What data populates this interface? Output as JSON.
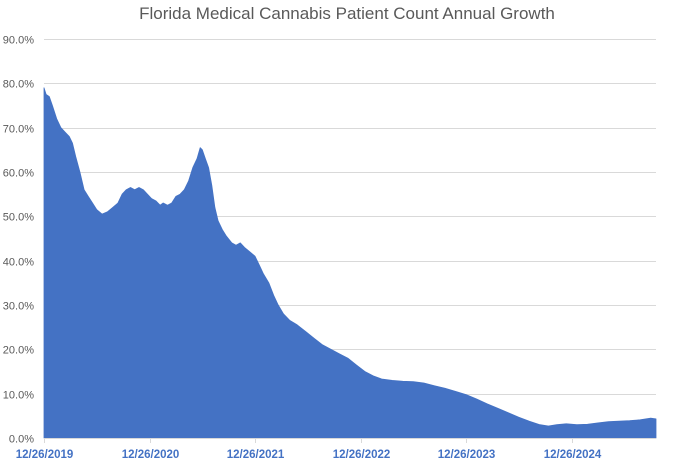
{
  "chart_data": {
    "type": "area",
    "title": "Florida Medical Cannabis Patient Count Annual Growth",
    "xlabel": "",
    "ylabel": "",
    "ylim": [
      0,
      0.9
    ],
    "y_ticks": [
      0,
      0.1,
      0.2,
      0.3,
      0.4,
      0.5,
      0.6,
      0.7,
      0.8,
      0.9
    ],
    "y_tick_labels": [
      "0.0%",
      "10.0%",
      "20.0%",
      "30.0%",
      "40.0%",
      "50.0%",
      "60.0%",
      "70.0%",
      "80.0%",
      "90.0%"
    ],
    "x_tick_labels": [
      "12/26/2019",
      "12/26/2020",
      "12/26/2021",
      "12/26/2022",
      "12/26/2023",
      "12/26/2024"
    ],
    "x_range_years": [
      0,
      5.8
    ],
    "grid": true,
    "legend": "none",
    "fill_color": "#4472c4",
    "series": [
      {
        "name": "Annual Growth",
        "points": [
          [
            0.0,
            0.79
          ],
          [
            0.02,
            0.775
          ],
          [
            0.05,
            0.77
          ],
          [
            0.08,
            0.75
          ],
          [
            0.12,
            0.72
          ],
          [
            0.16,
            0.7
          ],
          [
            0.2,
            0.69
          ],
          [
            0.24,
            0.68
          ],
          [
            0.27,
            0.665
          ],
          [
            0.3,
            0.635
          ],
          [
            0.34,
            0.6
          ],
          [
            0.38,
            0.56
          ],
          [
            0.42,
            0.545
          ],
          [
            0.46,
            0.53
          ],
          [
            0.5,
            0.515
          ],
          [
            0.55,
            0.505
          ],
          [
            0.6,
            0.51
          ],
          [
            0.65,
            0.52
          ],
          [
            0.7,
            0.53
          ],
          [
            0.74,
            0.55
          ],
          [
            0.78,
            0.56
          ],
          [
            0.82,
            0.565
          ],
          [
            0.86,
            0.56
          ],
          [
            0.9,
            0.565
          ],
          [
            0.94,
            0.56
          ],
          [
            0.98,
            0.55
          ],
          [
            1.02,
            0.54
          ],
          [
            1.06,
            0.535
          ],
          [
            1.1,
            0.525
          ],
          [
            1.13,
            0.53
          ],
          [
            1.17,
            0.525
          ],
          [
            1.21,
            0.53
          ],
          [
            1.25,
            0.545
          ],
          [
            1.29,
            0.55
          ],
          [
            1.33,
            0.56
          ],
          [
            1.37,
            0.58
          ],
          [
            1.41,
            0.61
          ],
          [
            1.45,
            0.63
          ],
          [
            1.48,
            0.655
          ],
          [
            1.5,
            0.65
          ],
          [
            1.53,
            0.63
          ],
          [
            1.56,
            0.61
          ],
          [
            1.59,
            0.57
          ],
          [
            1.62,
            0.52
          ],
          [
            1.65,
            0.49
          ],
          [
            1.69,
            0.47
          ],
          [
            1.73,
            0.455
          ],
          [
            1.78,
            0.44
          ],
          [
            1.82,
            0.435
          ],
          [
            1.86,
            0.44
          ],
          [
            1.9,
            0.43
          ],
          [
            1.95,
            0.42
          ],
          [
            2.0,
            0.41
          ],
          [
            2.04,
            0.39
          ],
          [
            2.08,
            0.37
          ],
          [
            2.13,
            0.35
          ],
          [
            2.18,
            0.32
          ],
          [
            2.22,
            0.3
          ],
          [
            2.27,
            0.28
          ],
          [
            2.33,
            0.265
          ],
          [
            2.4,
            0.255
          ],
          [
            2.48,
            0.24
          ],
          [
            2.56,
            0.225
          ],
          [
            2.64,
            0.21
          ],
          [
            2.72,
            0.2
          ],
          [
            2.8,
            0.19
          ],
          [
            2.88,
            0.18
          ],
          [
            2.96,
            0.165
          ],
          [
            3.04,
            0.15
          ],
          [
            3.12,
            0.14
          ],
          [
            3.2,
            0.133
          ],
          [
            3.3,
            0.13
          ],
          [
            3.4,
            0.128
          ],
          [
            3.5,
            0.127
          ],
          [
            3.6,
            0.124
          ],
          [
            3.7,
            0.118
          ],
          [
            3.8,
            0.112
          ],
          [
            3.9,
            0.105
          ],
          [
            4.0,
            0.098
          ],
          [
            4.1,
            0.088
          ],
          [
            4.2,
            0.077
          ],
          [
            4.3,
            0.067
          ],
          [
            4.4,
            0.057
          ],
          [
            4.5,
            0.047
          ],
          [
            4.6,
            0.038
          ],
          [
            4.7,
            0.03
          ],
          [
            4.78,
            0.027
          ],
          [
            4.86,
            0.03
          ],
          [
            4.95,
            0.032
          ],
          [
            5.05,
            0.03
          ],
          [
            5.15,
            0.031
          ],
          [
            5.25,
            0.034
          ],
          [
            5.35,
            0.037
          ],
          [
            5.45,
            0.038
          ],
          [
            5.55,
            0.039
          ],
          [
            5.65,
            0.041
          ],
          [
            5.75,
            0.045
          ],
          [
            5.8,
            0.043
          ]
        ]
      }
    ]
  }
}
